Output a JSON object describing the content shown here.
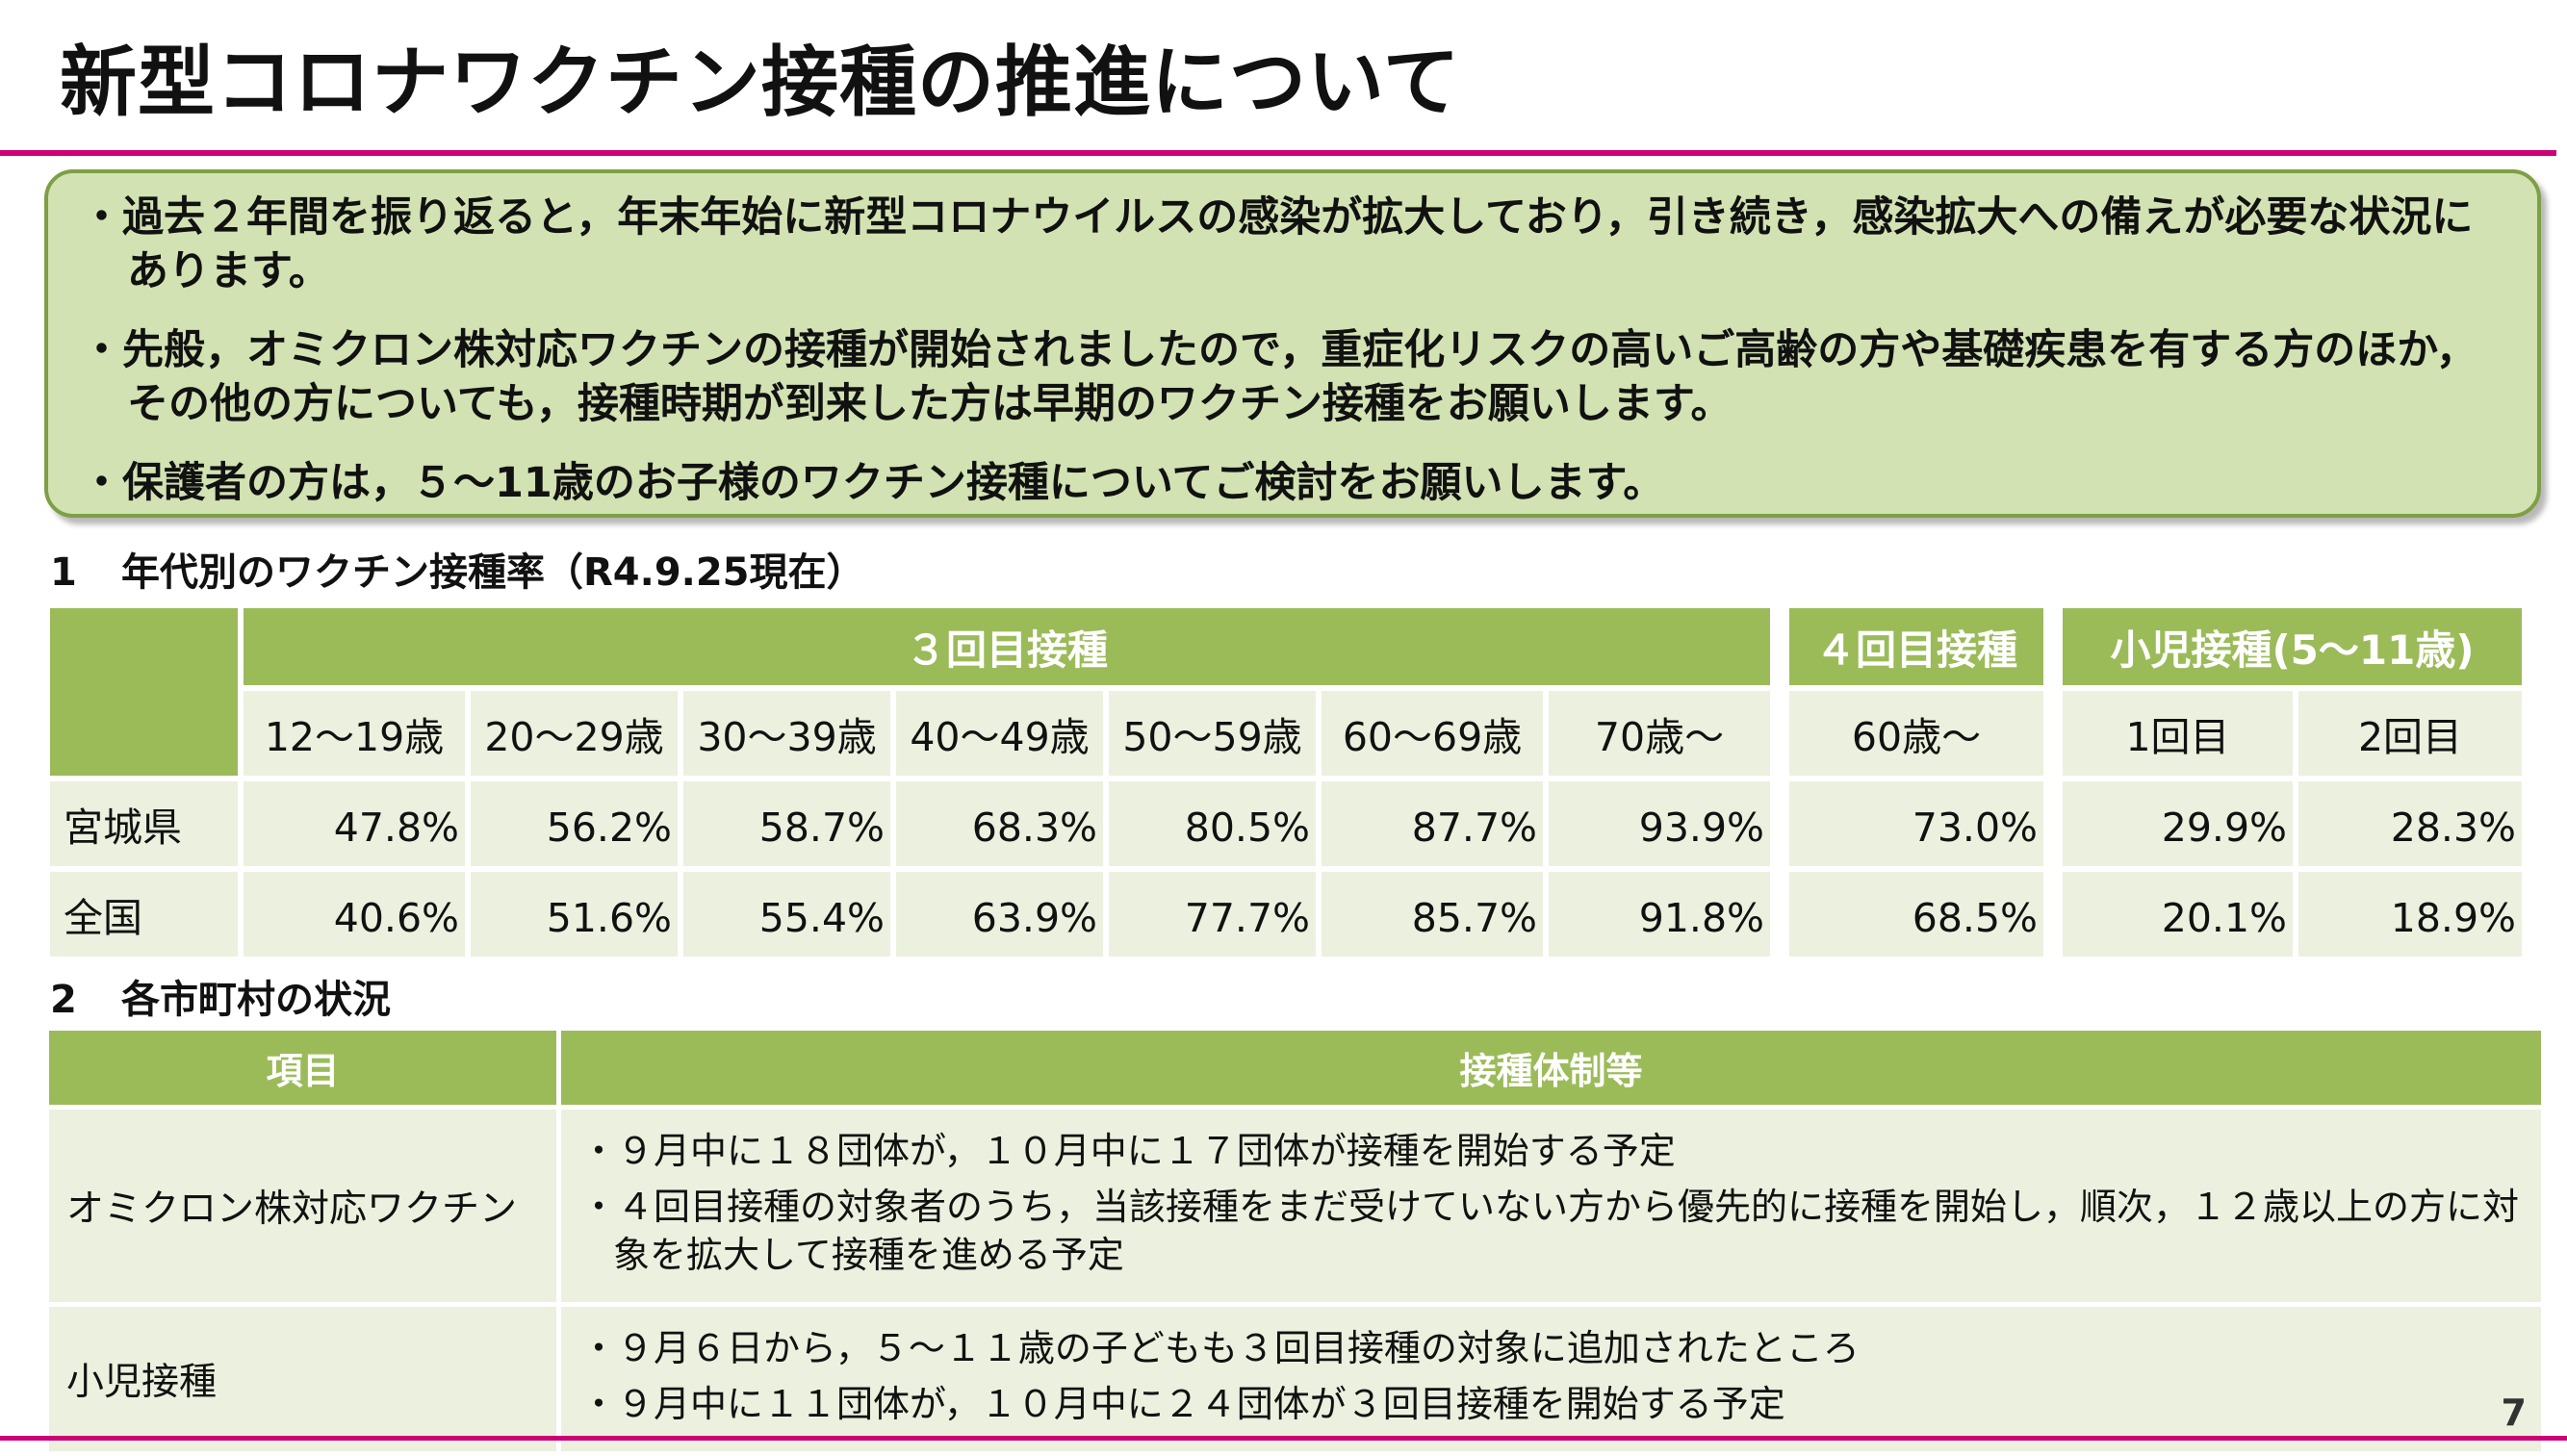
{
  "page": {
    "title": "新型コロナワクチン接種の推進について",
    "page_number": "7"
  },
  "summary": {
    "items": [
      "・過去２年間を振り返ると，年末年始に新型コロナウイルスの感染が拡大しており，引き続き，感染拡大への備えが必要な状況にあります。",
      "・先般，オミクロン株対応ワクチンの接種が開始されましたので，重症化リスクの高いご高齢の方や基礎疾患を有する方のほか，その他の方についても，接種時期が到来した方は早期のワクチン接種をお願いします。",
      "・保護者の方は，５～11歳のお子様のワクチン接種についてご検討をお願いします。"
    ]
  },
  "section1": {
    "number": "1",
    "title": "年代別のワクチン接種率（R4.9.25現在）",
    "groups": {
      "third": "３回目接種",
      "fourth": "４回目接種",
      "pediatric": "小児接種(5～11歳)"
    },
    "columns": {
      "third": [
        "12～19歳",
        "20～29歳",
        "30～39歳",
        "40～49歳",
        "50～59歳",
        "60～69歳",
        "70歳～"
      ],
      "fourth": [
        "60歳～"
      ],
      "pediatric": [
        "1回目",
        "2回目"
      ]
    },
    "rows": [
      {
        "label": "宮城県",
        "third": [
          "47.8%",
          "56.2%",
          "58.7%",
          "68.3%",
          "80.5%",
          "87.7%",
          "93.9%"
        ],
        "fourth": [
          "73.0%"
        ],
        "pediatric": [
          "29.9%",
          "28.3%"
        ]
      },
      {
        "label": "全国",
        "third": [
          "40.6%",
          "51.6%",
          "55.4%",
          "63.9%",
          "77.7%",
          "85.7%",
          "91.8%"
        ],
        "fourth": [
          "68.5%"
        ],
        "pediatric": [
          "20.1%",
          "18.9%"
        ]
      }
    ]
  },
  "section2": {
    "number": "2",
    "title": "各市町村の状況",
    "headers": [
      "項目",
      "接種体制等"
    ],
    "rows": [
      {
        "item": "オミクロン株対応ワクチン",
        "details": [
          "・９月中に１８団体が，１０月中に１７団体が接種を開始する予定",
          "・４回目接種の対象者のうち，当該接種をまだ受けていない方から優先的に接種を開始し，順次，１２歳以上の方に対象を拡大して接種を進める予定"
        ]
      },
      {
        "item": "小児接種",
        "details": [
          "・９月６日から，５～１１歳の子どもも３回目接種の対象に追加されたところ",
          "・９月中に１１団体が，１０月中に２４団体が３回目接種を開始する予定"
        ]
      }
    ]
  },
  "colors": {
    "accent_magenta": "#cc0077",
    "header_green": "#9bbb59",
    "cell_light_green": "#ebf1de",
    "summary_box_fill": "#d2e2b3",
    "summary_box_border": "#7e9f45"
  }
}
